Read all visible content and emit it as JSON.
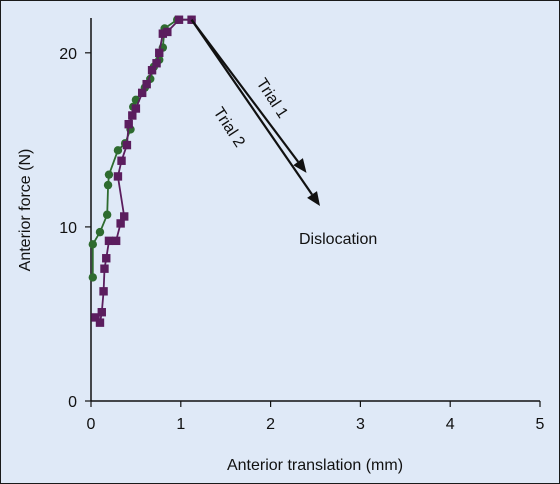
{
  "chart_data": {
    "type": "line",
    "xlabel": "Anterior translation (mm)",
    "ylabel": "Anterior force (N)",
    "xlim": [
      0,
      5
    ],
    "ylim": [
      0,
      22
    ],
    "xticks": [
      0,
      1,
      2,
      3,
      4,
      5
    ],
    "yticks": [
      0,
      10,
      20
    ],
    "grid": false,
    "series": [
      {
        "name": "Trial 1",
        "color": "#2e6b2f",
        "marker": "circle",
        "points": [
          [
            0.02,
            7.1
          ],
          [
            0.02,
            9.0
          ],
          [
            0.1,
            9.7
          ],
          [
            0.18,
            10.7
          ],
          [
            0.19,
            12.4
          ],
          [
            0.2,
            13.0
          ],
          [
            0.3,
            14.4
          ],
          [
            0.38,
            14.8
          ],
          [
            0.44,
            15.6
          ],
          [
            0.47,
            16.9
          ],
          [
            0.5,
            17.3
          ],
          [
            0.6,
            18.0
          ],
          [
            0.66,
            18.5
          ],
          [
            0.7,
            19.2
          ],
          [
            0.76,
            19.6
          ],
          [
            0.8,
            20.3
          ],
          [
            0.82,
            21.4
          ],
          [
            0.96,
            21.9
          ],
          [
            1.12,
            21.9
          ]
        ],
        "dislocation_end": [
          2.4,
          13.1
        ]
      },
      {
        "name": "Trial 2",
        "color": "#5b1d5e",
        "marker": "square",
        "points": [
          [
            0.05,
            4.8
          ],
          [
            0.1,
            4.5
          ],
          [
            0.12,
            5.1
          ],
          [
            0.14,
            6.3
          ],
          [
            0.15,
            7.6
          ],
          [
            0.17,
            8.2
          ],
          [
            0.2,
            9.2
          ],
          [
            0.28,
            9.2
          ],
          [
            0.33,
            10.2
          ],
          [
            0.37,
            10.6
          ],
          [
            0.3,
            12.9
          ],
          [
            0.34,
            13.8
          ],
          [
            0.4,
            14.7
          ],
          [
            0.42,
            15.9
          ],
          [
            0.46,
            16.4
          ],
          [
            0.5,
            16.8
          ],
          [
            0.57,
            17.7
          ],
          [
            0.62,
            18.2
          ],
          [
            0.68,
            19.0
          ],
          [
            0.73,
            19.4
          ],
          [
            0.76,
            20.0
          ],
          [
            0.8,
            21.1
          ],
          [
            0.85,
            21.2
          ],
          [
            0.98,
            21.9
          ],
          [
            1.12,
            21.9
          ]
        ],
        "dislocation_end": [
          2.55,
          11.2
        ]
      }
    ],
    "annotations": {
      "trial1": "Trial 1",
      "trial2": "Trial 2",
      "dislocation": "Dislocation"
    }
  }
}
